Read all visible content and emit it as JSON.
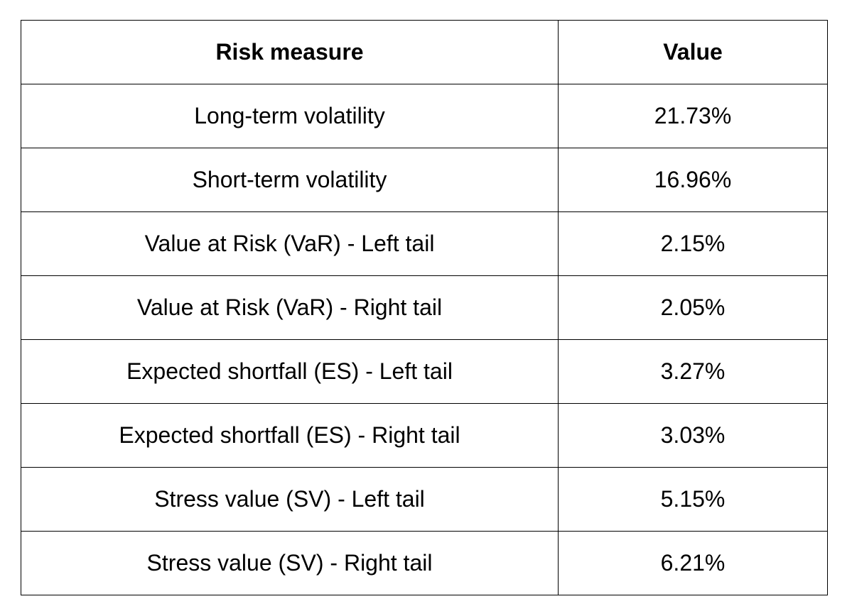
{
  "table": {
    "header": [
      "Risk measure",
      "Value"
    ],
    "rows": [
      [
        "Long-term volatility",
        "21.73%"
      ],
      [
        "Short-term volatility",
        "16.96%"
      ],
      [
        "Value at Risk (VaR) - Left tail",
        "2.15%"
      ],
      [
        "Value at Risk (VaR) - Right tail",
        "2.05%"
      ],
      [
        "Expected shortfall (ES) - Left tail",
        "3.27%"
      ],
      [
        "Expected shortfall (ES) - Right tail",
        "3.03%"
      ],
      [
        "Stress value (SV) - Left tail",
        "5.15%"
      ],
      [
        "Stress value (SV) - Right tail",
        "6.21%"
      ]
    ]
  }
}
